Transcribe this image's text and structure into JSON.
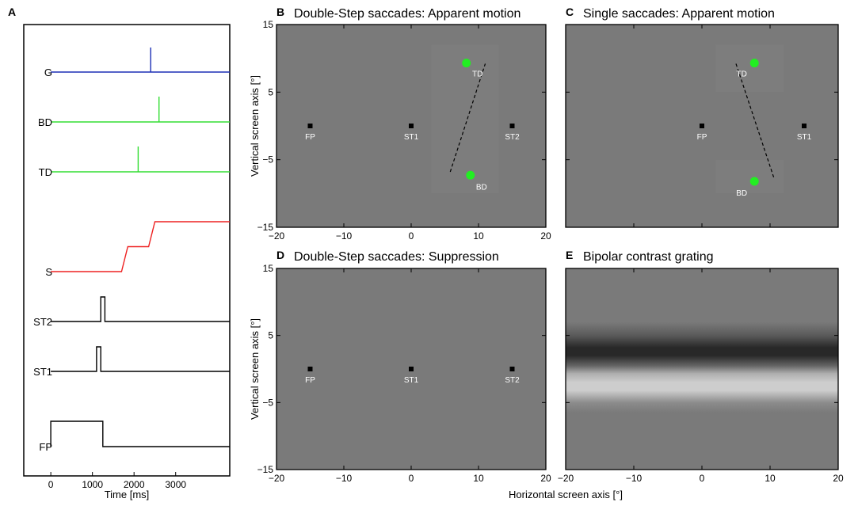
{
  "colors": {
    "background": "#7a7a7a",
    "background_patch": "#7d7d7d",
    "dot": "#22ee22",
    "marker": "#000000",
    "label_white": "#ffffff",
    "trace_G": "#1c2fb5",
    "trace_green": "#33dd33",
    "trace_S": "#ee2222",
    "trace_black": "#000000",
    "axis": "#000000"
  },
  "shared_labels": {
    "x_axis": "Horizontal screen axis [°]"
  },
  "chart_data": [
    {
      "id": "A",
      "panel_letter": "A",
      "type": "line",
      "title": "",
      "xlabel": "Time [ms]",
      "ylabel": "",
      "xlim": [
        -650,
        4300
      ],
      "xticks": [
        0,
        1000,
        2000,
        3000
      ],
      "xtick_labels": [
        "0",
        "1000",
        "2000",
        "3000"
      ],
      "series": [
        {
          "name": "G",
          "color": "#1c2fb5",
          "points": [
            [
              0,
              0
            ],
            [
              2400,
              0
            ],
            [
              2400,
              1
            ],
            [
              2400,
              0
            ],
            [
              4300,
              0
            ]
          ]
        },
        {
          "name": "BD",
          "color": "#33dd33",
          "points": [
            [
              0,
              0
            ],
            [
              2600,
              0
            ],
            [
              2600,
              1
            ],
            [
              2600,
              0
            ],
            [
              4300,
              0
            ]
          ]
        },
        {
          "name": "TD",
          "color": "#33dd33",
          "points": [
            [
              0,
              0
            ],
            [
              2100,
              0
            ],
            [
              2100,
              1
            ],
            [
              2100,
              0
            ],
            [
              4300,
              0
            ]
          ]
        },
        {
          "name": "S",
          "color": "#ee2222",
          "points": [
            [
              0,
              0
            ],
            [
              1700,
              0
            ],
            [
              1850,
              0.5
            ],
            [
              2350,
              0.5
            ],
            [
              2500,
              1
            ],
            [
              4300,
              1
            ]
          ]
        },
        {
          "name": "ST2",
          "color": "#000000",
          "points": [
            [
              0,
              0
            ],
            [
              1200,
              0
            ],
            [
              1200,
              1
            ],
            [
              1300,
              1
            ],
            [
              1300,
              0
            ],
            [
              4300,
              0
            ]
          ]
        },
        {
          "name": "ST1",
          "color": "#000000",
          "points": [
            [
              0,
              0
            ],
            [
              1100,
              0
            ],
            [
              1100,
              1
            ],
            [
              1200,
              1
            ],
            [
              1200,
              0
            ],
            [
              4300,
              0
            ]
          ]
        },
        {
          "name": "FP",
          "color": "#000000",
          "points": [
            [
              0,
              0
            ],
            [
              0,
              1
            ],
            [
              1250,
              1
            ],
            [
              1250,
              0
            ],
            [
              4300,
              0
            ]
          ]
        }
      ]
    },
    {
      "id": "B",
      "panel_letter": "B",
      "type": "scatter",
      "title": "Double-Step saccades: Apparent motion",
      "xlabel": "",
      "ylabel": "Vertical screen axis [°]",
      "xlim": [
        -20,
        20
      ],
      "ylim": [
        -15,
        15
      ],
      "xticks": [
        -20,
        -10,
        0,
        10,
        20
      ],
      "xtick_labels": [
        "−20",
        "−10",
        "0",
        "10",
        "20"
      ],
      "yticks": [
        -15,
        -5,
        5,
        15
      ],
      "ytick_labels": [
        "−15",
        "−5",
        "5",
        "15"
      ],
      "markers": [
        {
          "label": "FP",
          "x": -15,
          "y": 0
        },
        {
          "label": "ST1",
          "x": 0,
          "y": 0
        },
        {
          "label": "ST2",
          "x": 15,
          "y": 0
        }
      ],
      "dots": [
        {
          "label": "TD",
          "x": 8.2,
          "y": 9.3
        },
        {
          "label": "BD",
          "x": 8.8,
          "y": -7.3
        }
      ],
      "dashed_line": [
        [
          5.8,
          -6.8
        ],
        [
          11.0,
          9.2
        ]
      ],
      "background": "flat",
      "patches": [
        {
          "x0": 3,
          "x1": 13,
          "y0": -10,
          "y1": 12
        }
      ]
    },
    {
      "id": "C",
      "panel_letter": "C",
      "type": "scatter",
      "title": "Single saccades: Apparent motion",
      "xlabel": "",
      "ylabel": "",
      "xlim": [
        -20,
        20
      ],
      "ylim": [
        -15,
        15
      ],
      "xticks": [
        -20,
        -10,
        0,
        10,
        20
      ],
      "xtick_labels": [],
      "yticks": [
        -15,
        -5,
        5,
        15
      ],
      "ytick_labels": [],
      "markers": [
        {
          "label": "FP",
          "x": 0,
          "y": 0
        },
        {
          "label": "ST1",
          "x": 15,
          "y": 0
        }
      ],
      "dots": [
        {
          "label": "TD",
          "x": 7.7,
          "y": 9.3
        },
        {
          "label": "BD",
          "x": 7.7,
          "y": -8.2
        }
      ],
      "dashed_line": [
        [
          5.0,
          9.2
        ],
        [
          10.6,
          -7.8
        ]
      ],
      "background": "flat",
      "patches": [
        {
          "x0": 2,
          "x1": 12,
          "y0": 5,
          "y1": 12
        },
        {
          "x0": 2,
          "x1": 12,
          "y0": -10,
          "y1": -5
        }
      ]
    },
    {
      "id": "D",
      "panel_letter": "D",
      "type": "scatter",
      "title": "Double-Step saccades: Suppression",
      "xlabel": "",
      "ylabel": "Vertical screen axis [°]",
      "xlim": [
        -20,
        20
      ],
      "ylim": [
        -15,
        15
      ],
      "xticks": [
        -20,
        -10,
        0,
        10,
        20
      ],
      "xtick_labels": [
        "−20",
        "−10",
        "0",
        "10",
        "20"
      ],
      "yticks": [
        -15,
        -5,
        5,
        15
      ],
      "ytick_labels": [
        "−15",
        "−5",
        "5",
        "15"
      ],
      "markers": [
        {
          "label": "FP",
          "x": -15,
          "y": 0
        },
        {
          "label": "ST1",
          "x": 0,
          "y": 0
        },
        {
          "label": "ST2",
          "x": 15,
          "y": 0
        }
      ],
      "dots": [],
      "dashed_line": null,
      "background": "flat",
      "patches": []
    },
    {
      "id": "E",
      "panel_letter": "E",
      "type": "heatmap",
      "title": "Bipolar contrast grating",
      "xlabel": "",
      "ylabel": "",
      "xlim": [
        -20,
        20
      ],
      "ylim": [
        -15,
        15
      ],
      "xticks": [
        -20,
        -10,
        0,
        10,
        20
      ],
      "xtick_labels": [
        "−20",
        "−10",
        "0",
        "10",
        "20"
      ],
      "yticks": [
        -15,
        -5,
        5,
        15
      ],
      "ytick_labels": [],
      "markers": [],
      "dots": [],
      "dashed_line": null,
      "background": "grating",
      "grating_profile": [
        {
          "y": 15,
          "gray": 122
        },
        {
          "y": 7,
          "gray": 122
        },
        {
          "y": 5,
          "gray": 90
        },
        {
          "y": 3.2,
          "gray": 40
        },
        {
          "y": 2.0,
          "gray": 40
        },
        {
          "y": 0.5,
          "gray": 100
        },
        {
          "y": -0.7,
          "gray": 175
        },
        {
          "y": -2.0,
          "gray": 205
        },
        {
          "y": -3.2,
          "gray": 205
        },
        {
          "y": -5,
          "gray": 140
        },
        {
          "y": -6.5,
          "gray": 122
        },
        {
          "y": -15,
          "gray": 122
        }
      ],
      "patches": []
    }
  ]
}
